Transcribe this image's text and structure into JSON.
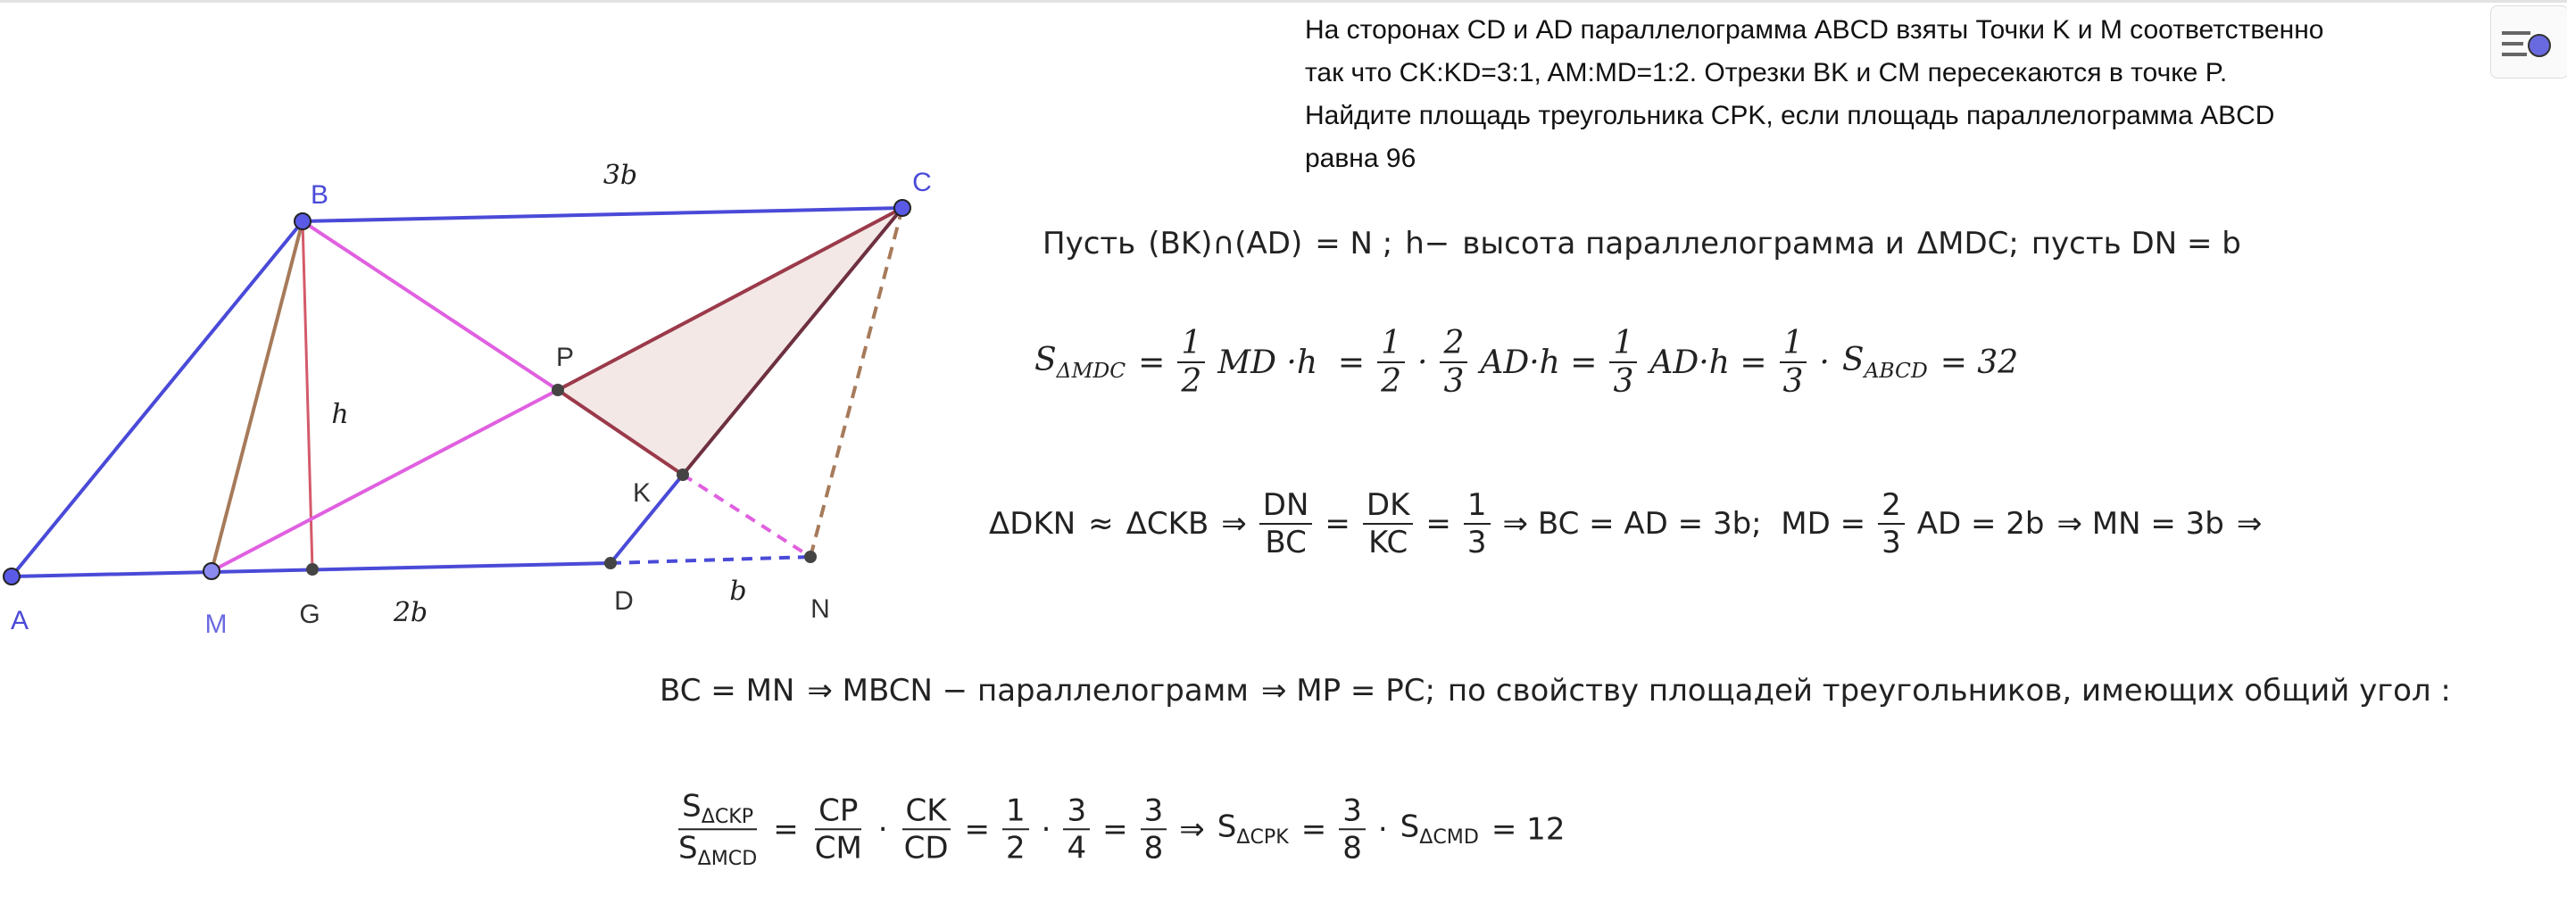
{
  "problem": {
    "lines": [
      "На сторонах CD и AD параллелограмма ABCD взяты Точки K и M соответственно",
      "так что CK:KD=3:1, AM:MD=1:2. Отрезки BK и CM пересекаются в точке P.",
      "Найдите площадь треугольника CPK, если площадь параллелограмма ABCD",
      "равна 96"
    ]
  },
  "figure": {
    "point_labels": [
      "A",
      "B",
      "C",
      "D",
      "M",
      "G",
      "K",
      "P",
      "N"
    ],
    "segment_labels": [
      "3b",
      "h",
      "2b",
      "b"
    ]
  },
  "solution": {
    "line1": [
      "Пусть",
      "(BK)∩(AD)",
      "= N ;",
      "h−",
      "высота параллелограмма и",
      "ΔMDC;",
      "пусть DN = b"
    ],
    "line2": [
      {
        "base": "S",
        "sub": "ΔMDC"
      },
      "=",
      {
        "num": "1",
        "den": "2"
      },
      "MD ·h  =",
      {
        "num": "1",
        "den": "2"
      },
      "·",
      {
        "num": "2",
        "den": "3"
      },
      "AD·h =",
      {
        "num": "1",
        "den": "3"
      },
      "AD·h =",
      {
        "num": "1",
        "den": "3"
      },
      "·",
      {
        "base": "S",
        "sub": "ABCD"
      },
      "= 32"
    ],
    "line3": [
      "ΔDKN",
      "≈",
      "ΔCKB",
      "⇒",
      {
        "num": "DN",
        "den": "BC"
      },
      "=",
      {
        "num": "DK",
        "den": "KC"
      },
      "=",
      {
        "num": "1",
        "den": "3"
      },
      "⇒ BC = AD = 3b;  MD =",
      {
        "num": "2",
        "den": "3"
      },
      "AD = 2b",
      "⇒ MN = 3b",
      "⇒"
    ],
    "line4": [
      "BC = MN",
      "⇒ MBCN − параллелограмм",
      "⇒ MP = PC;",
      "по свойству площадей треугольников, имеющих общий угол :"
    ],
    "line5": [
      {
        "num": {
          "base": "S",
          "sub": "ΔCKP"
        },
        "den": {
          "base": "S",
          "sub": "ΔMCD"
        }
      },
      "=",
      {
        "num": "CP",
        "den": "CM"
      },
      "·",
      {
        "num": "CK",
        "den": "CD"
      },
      "=",
      {
        "num": "1",
        "den": "2"
      },
      "·",
      {
        "num": "3",
        "den": "4"
      },
      "=",
      {
        "num": "3",
        "den": "8"
      },
      "⇒",
      {
        "base": "S",
        "sub": "ΔCPK"
      },
      "=",
      {
        "num": "3",
        "den": "8"
      },
      "·",
      {
        "base": "S",
        "sub": "ΔCMD"
      },
      "= 12"
    ]
  }
}
